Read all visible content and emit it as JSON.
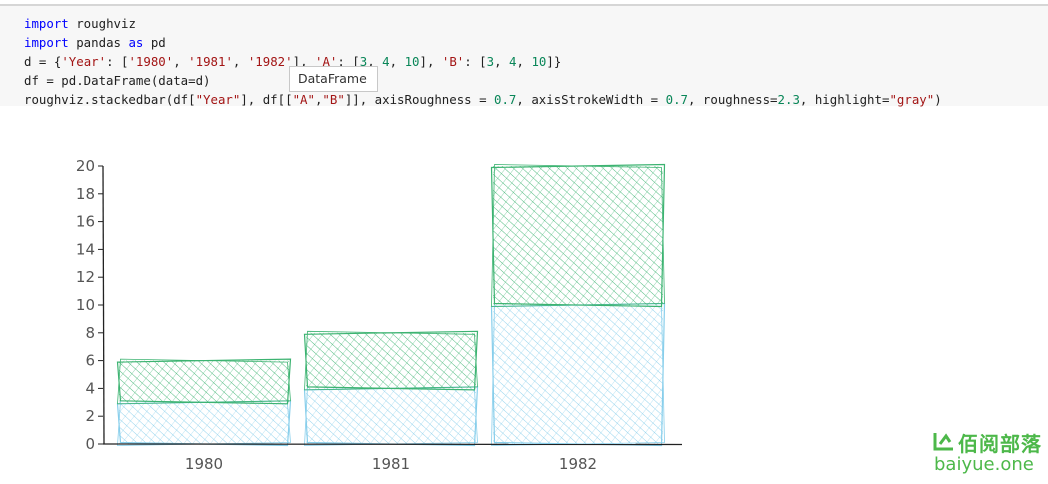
{
  "code_lines": [
    [
      {
        "t": "import",
        "c": "kw"
      },
      {
        "t": " roughviz",
        "c": ""
      }
    ],
    [
      {
        "t": "import",
        "c": "kw"
      },
      {
        "t": " pandas ",
        "c": ""
      },
      {
        "t": "as",
        "c": "kw"
      },
      {
        "t": " pd",
        "c": ""
      }
    ],
    [
      {
        "t": "d = {",
        "c": ""
      },
      {
        "t": "'Year'",
        "c": "str"
      },
      {
        "t": ": [",
        "c": ""
      },
      {
        "t": "'1980'",
        "c": "str"
      },
      {
        "t": ", ",
        "c": ""
      },
      {
        "t": "'1981'",
        "c": "str"
      },
      {
        "t": ", ",
        "c": ""
      },
      {
        "t": "'1982'",
        "c": "str"
      },
      {
        "t": "], ",
        "c": ""
      },
      {
        "t": "'A'",
        "c": "str"
      },
      {
        "t": ": [",
        "c": ""
      },
      {
        "t": "3",
        "c": "num"
      },
      {
        "t": ", ",
        "c": ""
      },
      {
        "t": "4",
        "c": "num"
      },
      {
        "t": ", ",
        "c": ""
      },
      {
        "t": "10",
        "c": "num"
      },
      {
        "t": "], ",
        "c": ""
      },
      {
        "t": "'B'",
        "c": "str"
      },
      {
        "t": ": [",
        "c": ""
      },
      {
        "t": "3",
        "c": "num"
      },
      {
        "t": ", ",
        "c": ""
      },
      {
        "t": "4",
        "c": "num"
      },
      {
        "t": ", ",
        "c": ""
      },
      {
        "t": "10",
        "c": "num"
      },
      {
        "t": "]}",
        "c": ""
      }
    ],
    [
      {
        "t": "df = pd.DataFrame(data=d)",
        "c": ""
      }
    ],
    [
      {
        "t": "roughviz.stackedbar(df[",
        "c": ""
      },
      {
        "t": "\"Year\"",
        "c": "str"
      },
      {
        "t": "], df[[",
        "c": ""
      },
      {
        "t": "\"A\"",
        "c": "str"
      },
      {
        "t": ",",
        "c": ""
      },
      {
        "t": "\"B\"",
        "c": "str"
      },
      {
        "t": "]], axisRoughness = ",
        "c": ""
      },
      {
        "t": "0.7",
        "c": "num"
      },
      {
        "t": ", axisStrokeWidth = ",
        "c": ""
      },
      {
        "t": "0.7",
        "c": "num"
      },
      {
        "t": ", roughness=",
        "c": ""
      },
      {
        "t": "2.3",
        "c": "num"
      },
      {
        "t": ", highlight=",
        "c": ""
      },
      {
        "t": "\"gray\"",
        "c": "str"
      },
      {
        "t": ")",
        "c": ""
      }
    ]
  ],
  "tooltip": "DataFrame",
  "chart_data": {
    "type": "bar",
    "stacked": true,
    "categories": [
      "1980",
      "1981",
      "1982"
    ],
    "series": [
      {
        "values": [
          3,
          4,
          10
        ],
        "color": "#87ceeb"
      },
      {
        "values": [
          3,
          4,
          10
        ],
        "color": "#3cb371"
      }
    ],
    "ylim": [
      0,
      20
    ],
    "yticks": [
      "0",
      "2",
      "4",
      "6",
      "8",
      "10",
      "12",
      "14",
      "16",
      "18",
      "20"
    ],
    "title": "",
    "xlabel": "",
    "ylabel": "",
    "grid": false
  },
  "watermark": {
    "logo_text": "佰阅部落",
    "url": "baiyue.one",
    "color": "#4db84a"
  }
}
